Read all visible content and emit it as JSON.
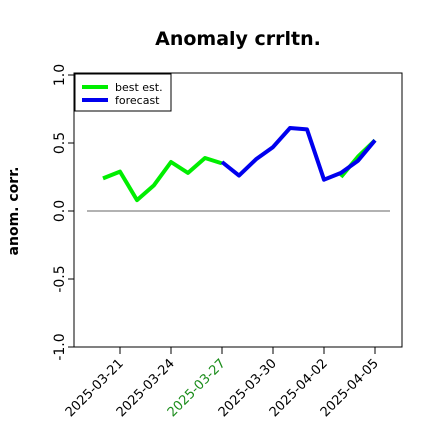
{
  "chart_data": {
    "type": "line",
    "title": "Anomaly crrltn.",
    "xlabel": "",
    "ylabel": "anom. corr.",
    "ylim": [
      -1.0,
      1.0
    ],
    "yticks": [
      "-1.0",
      "-0.5",
      "0.0",
      "0.5",
      "1.0"
    ],
    "x_ticks": [
      "2025-03-21",
      "2025-03-24",
      "2025-03-27",
      "2025-03-30",
      "2025-04-02",
      "2025-04-05"
    ],
    "x_tick_colors": [
      "#000000",
      "#000000",
      "#1a8c1a",
      "#000000",
      "#000000",
      "#000000"
    ],
    "x": [
      "2025-03-20",
      "2025-03-21",
      "2025-03-22",
      "2025-03-23",
      "2025-03-24",
      "2025-03-25",
      "2025-03-26",
      "2025-03-27",
      "2025-03-28",
      "2025-03-29",
      "2025-03-30",
      "2025-03-31",
      "2025-04-01",
      "2025-04-02",
      "2025-04-03",
      "2025-04-04",
      "2025-04-05"
    ],
    "reference_line": 0.0,
    "grid": false,
    "legend_position": "top-left",
    "series": [
      {
        "name": "best est.",
        "color": "#00ee00",
        "values": [
          0.24,
          0.29,
          0.08,
          0.19,
          0.36,
          0.28,
          0.39,
          0.35,
          null,
          null,
          null,
          null,
          null,
          null,
          0.25,
          0.4,
          0.52
        ]
      },
      {
        "name": "forecast",
        "color": "#0000ee",
        "values": [
          null,
          null,
          null,
          null,
          null,
          null,
          null,
          0.36,
          0.26,
          0.38,
          0.47,
          0.61,
          0.6,
          0.23,
          0.28,
          0.37,
          0.52
        ]
      }
    ]
  }
}
